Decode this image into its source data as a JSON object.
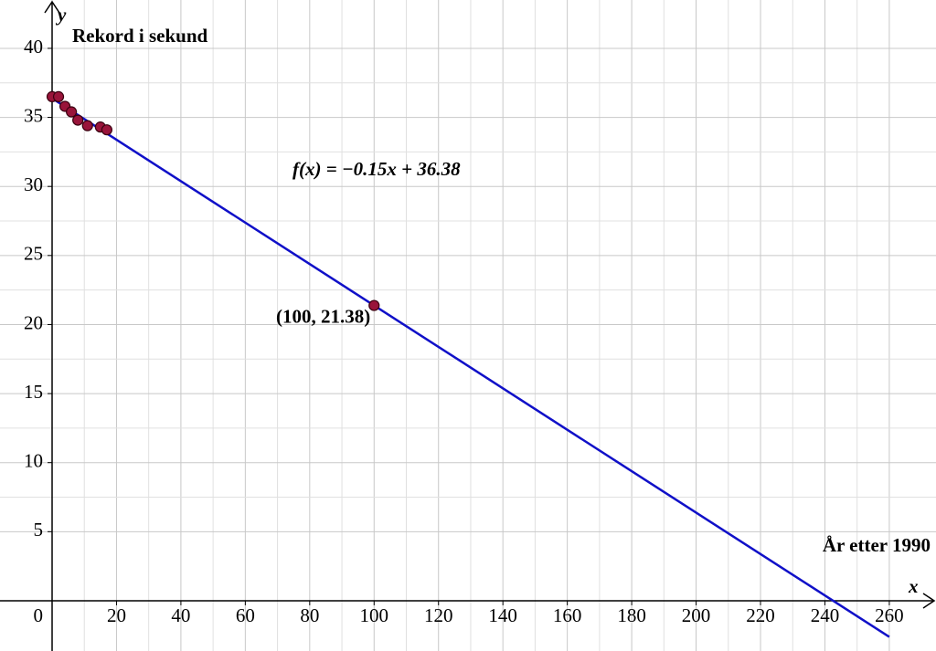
{
  "chart_data": {
    "type": "scatter",
    "x_label": "x",
    "y_label": "y",
    "y_title": "Rekord i sekund",
    "x_title": "År etter 1990",
    "xlim": [
      -16.18,
      274.5
    ],
    "ylim": [
      -3.64,
      43.5
    ],
    "xticks": [
      0,
      20,
      40,
      60,
      80,
      100,
      120,
      140,
      160,
      180,
      200,
      220,
      240,
      260
    ],
    "yticks": [
      5,
      10,
      15,
      20,
      25,
      30,
      35,
      40
    ],
    "grid": true,
    "series": [
      {
        "kind": "scatter",
        "color": "#99143a",
        "x": [
          0,
          2,
          4,
          6,
          8,
          11,
          15,
          17
        ],
        "values": [
          36.5,
          36.5,
          35.8,
          35.4,
          34.8,
          34.4,
          34.3,
          34.1
        ]
      },
      {
        "kind": "line",
        "color": "#1010c8",
        "label": "f(x) = −0.15x + 36.38",
        "x": [
          0,
          260
        ],
        "values": [
          36.38,
          -2.62
        ]
      },
      {
        "kind": "scatter",
        "color": "#99143a",
        "label": "(100, 21.38)",
        "x": [
          100
        ],
        "values": [
          21.38
        ]
      }
    ]
  }
}
